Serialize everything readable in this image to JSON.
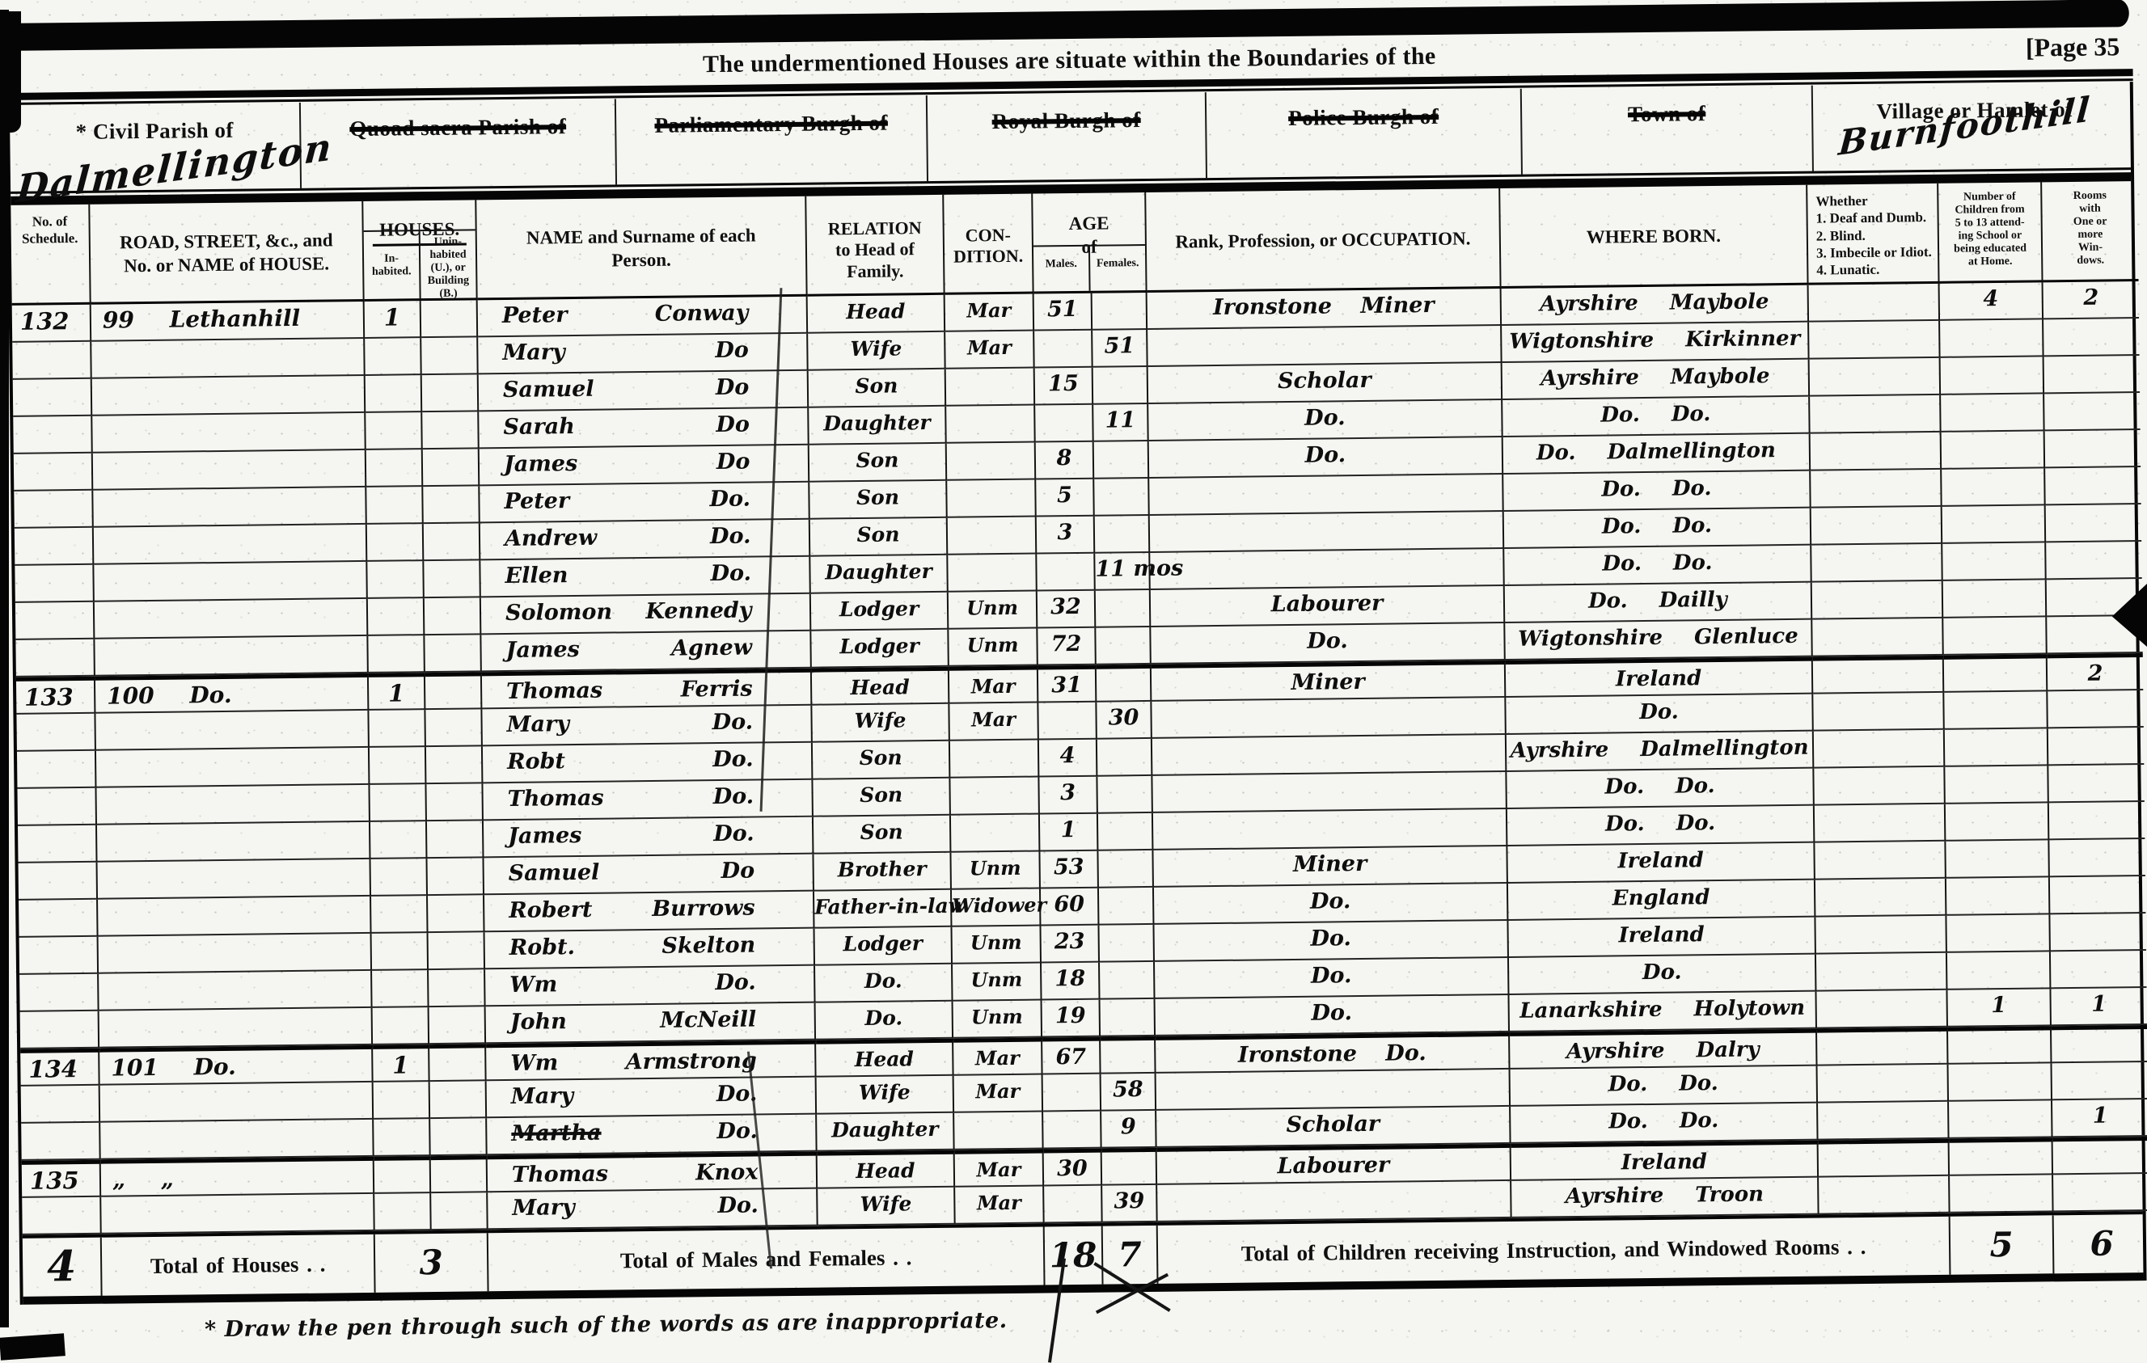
{
  "page": {
    "title": "The undermentioned Houses are situate within the Boundaries of the",
    "page_label": "[Page 35",
    "footnote": "*  Draw the pen through such of the words as are inappropriate."
  },
  "district_boxes": [
    {
      "label": "* Civil Parish of",
      "struck": false,
      "value": "Dalmellington",
      "value_class": "parish"
    },
    {
      "label": "Quoad sacra Parish of",
      "struck": true,
      "value": ""
    },
    {
      "label": "Parliamentary Burgh of",
      "struck": true,
      "value": ""
    },
    {
      "label": "Royal Burgh of",
      "struck": true,
      "value": ""
    },
    {
      "label": "Police Burgh of",
      "struck": true,
      "value": ""
    },
    {
      "label": "Town of",
      "struck": true,
      "value": ""
    },
    {
      "label": "Village or Hamlet of",
      "struck": false,
      "value": "Burnfoothill",
      "value_class": "village"
    }
  ],
  "columns": {
    "schedule": "No. of\nSchedule.",
    "road": "ROAD, STREET, &c., and\nNo. or NAME of HOUSE.",
    "houses": "HOUSES.",
    "inhabited": "In-\nhabited.",
    "uninhabited": "Unin-\nhabited\n(U.), or\nBuilding\n(B.)",
    "name": "NAME and Surname of each\nPerson.",
    "relation": "RELATION\nto Head of\nFamily.",
    "condition": "CON-\nDITION.",
    "age": "AGE\nof",
    "males": "Males.",
    "females": "Females.",
    "occupation": "Rank, Profession, or OCCUPATION.",
    "where_born": "WHERE BORN.",
    "whether": "Whether\n1.  Deaf and Dumb.\n2.  Blind.\n3.  Imbecile or Idiot.\n4.  Lunatic.",
    "children": "Number of\nChildren from\n5 to 13 attend-\ning School or\nbeing educated\nat Home.",
    "rooms": "Rooms\nwith\nOne or\nmore\nWin-\ndows."
  },
  "rows": [
    {
      "schedule": "132",
      "road": "99 Lethanhill",
      "inhabited": "1",
      "uninhabited": "",
      "first_name": "Peter",
      "surname": "Conway",
      "relation": "Head",
      "condition": "Mar",
      "age_male": "51",
      "age_female": "",
      "occupation": "Ironstone Miner",
      "where_born": "Ayrshire Maybole",
      "disability": "",
      "children_at_school": "4",
      "windowed_rooms": "2",
      "heavy_divider": false,
      "first_name_struck": false
    },
    {
      "schedule": "",
      "road": "",
      "inhabited": "",
      "uninhabited": "",
      "first_name": "Mary",
      "surname": "Do",
      "relation": "Wife",
      "condition": "Mar",
      "age_male": "",
      "age_female": "51",
      "occupation": "",
      "where_born": "Wigtonshire Kirkinner",
      "disability": "",
      "children_at_school": "",
      "windowed_rooms": "",
      "heavy_divider": false,
      "first_name_struck": false
    },
    {
      "schedule": "",
      "road": "",
      "inhabited": "",
      "uninhabited": "",
      "first_name": "Samuel",
      "surname": "Do",
      "relation": "Son",
      "condition": "",
      "age_male": "15",
      "age_female": "",
      "occupation": "Scholar",
      "where_born": "Ayrshire Maybole",
      "disability": "",
      "children_at_school": "",
      "windowed_rooms": "",
      "heavy_divider": false,
      "first_name_struck": false
    },
    {
      "schedule": "",
      "road": "",
      "inhabited": "",
      "uninhabited": "",
      "first_name": "Sarah",
      "surname": "Do",
      "relation": "Daughter",
      "condition": "",
      "age_male": "",
      "age_female": "11",
      "occupation": "Do.",
      "where_born": "Do. Do.",
      "disability": "",
      "children_at_school": "",
      "windowed_rooms": "",
      "heavy_divider": false,
      "first_name_struck": false
    },
    {
      "schedule": "",
      "road": "",
      "inhabited": "",
      "uninhabited": "",
      "first_name": "James",
      "surname": "Do",
      "relation": "Son",
      "condition": "",
      "age_male": "8",
      "age_female": "",
      "occupation": "Do.",
      "where_born": "Do. Dalmellington",
      "disability": "",
      "children_at_school": "",
      "windowed_rooms": "",
      "heavy_divider": false,
      "first_name_struck": false
    },
    {
      "schedule": "",
      "road": "",
      "inhabited": "",
      "uninhabited": "",
      "first_name": "Peter",
      "surname": "Do.",
      "relation": "Son",
      "condition": "",
      "age_male": "5",
      "age_female": "",
      "occupation": "",
      "where_born": "Do. Do.",
      "disability": "",
      "children_at_school": "",
      "windowed_rooms": "",
      "heavy_divider": false,
      "first_name_struck": false
    },
    {
      "schedule": "",
      "road": "",
      "inhabited": "",
      "uninhabited": "",
      "first_name": "Andrew",
      "surname": "Do.",
      "relation": "Son",
      "condition": "",
      "age_male": "3",
      "age_female": "",
      "occupation": "",
      "where_born": "Do. Do.",
      "disability": "",
      "children_at_school": "",
      "windowed_rooms": "",
      "heavy_divider": false,
      "first_name_struck": false
    },
    {
      "schedule": "",
      "road": "",
      "inhabited": "",
      "uninhabited": "",
      "first_name": "Ellen",
      "surname": "Do.",
      "relation": "Daughter",
      "condition": "",
      "age_male": "",
      "age_female": "11 mos",
      "occupation": "",
      "where_born": "Do. Do.",
      "disability": "",
      "children_at_school": "",
      "windowed_rooms": "",
      "heavy_divider": false,
      "first_name_struck": false
    },
    {
      "schedule": "",
      "road": "",
      "inhabited": "",
      "uninhabited": "",
      "first_name": "Solomon",
      "surname": "Kennedy",
      "relation": "Lodger",
      "condition": "Unm",
      "age_male": "32",
      "age_female": "",
      "occupation": "Labourer",
      "where_born": "Do. Dailly",
      "disability": "",
      "children_at_school": "",
      "windowed_rooms": "",
      "heavy_divider": false,
      "first_name_struck": false
    },
    {
      "schedule": "",
      "road": "",
      "inhabited": "",
      "uninhabited": "",
      "first_name": "James",
      "surname": "Agnew",
      "relation": "Lodger",
      "condition": "Unm",
      "age_male": "72",
      "age_female": "",
      "occupation": "Do.",
      "where_born": "Wigtonshire Glenluce",
      "disability": "",
      "children_at_school": "",
      "windowed_rooms": "",
      "heavy_divider": false,
      "first_name_struck": false
    },
    {
      "schedule": "133",
      "road": "100 Do.",
      "inhabited": "1",
      "uninhabited": "",
      "first_name": "Thomas",
      "surname": "Ferris",
      "relation": "Head",
      "condition": "Mar",
      "age_male": "31",
      "age_female": "",
      "occupation": "Miner",
      "where_born": "Ireland",
      "disability": "",
      "children_at_school": "",
      "windowed_rooms": "2",
      "heavy_divider": true,
      "first_name_struck": false
    },
    {
      "schedule": "",
      "road": "",
      "inhabited": "",
      "uninhabited": "",
      "first_name": "Mary",
      "surname": "Do.",
      "relation": "Wife",
      "condition": "Mar",
      "age_male": "",
      "age_female": "30",
      "occupation": "",
      "where_born": "Do.",
      "disability": "",
      "children_at_school": "",
      "windowed_rooms": "",
      "heavy_divider": false,
      "first_name_struck": false
    },
    {
      "schedule": "",
      "road": "",
      "inhabited": "",
      "uninhabited": "",
      "first_name": "Robt",
      "surname": "Do.",
      "relation": "Son",
      "condition": "",
      "age_male": "4",
      "age_female": "",
      "occupation": "",
      "where_born": "Ayrshire Dalmellington",
      "disability": "",
      "children_at_school": "",
      "windowed_rooms": "",
      "heavy_divider": false,
      "first_name_struck": false
    },
    {
      "schedule": "",
      "road": "",
      "inhabited": "",
      "uninhabited": "",
      "first_name": "Thomas",
      "surname": "Do.",
      "relation": "Son",
      "condition": "",
      "age_male": "3",
      "age_female": "",
      "occupation": "",
      "where_born": "Do. Do.",
      "disability": "",
      "children_at_school": "",
      "windowed_rooms": "",
      "heavy_divider": false,
      "first_name_struck": false
    },
    {
      "schedule": "",
      "road": "",
      "inhabited": "",
      "uninhabited": "",
      "first_name": "James",
      "surname": "Do.",
      "relation": "Son",
      "condition": "",
      "age_male": "1",
      "age_female": "",
      "occupation": "",
      "where_born": "Do. Do.",
      "disability": "",
      "children_at_school": "",
      "windowed_rooms": "",
      "heavy_divider": false,
      "first_name_struck": false
    },
    {
      "schedule": "",
      "road": "",
      "inhabited": "",
      "uninhabited": "",
      "first_name": "Samuel",
      "surname": "Do",
      "relation": "Brother",
      "condition": "Unm",
      "age_male": "53",
      "age_female": "",
      "occupation": "Miner",
      "where_born": "Ireland",
      "disability": "",
      "children_at_school": "",
      "windowed_rooms": "",
      "heavy_divider": false,
      "first_name_struck": false
    },
    {
      "schedule": "",
      "road": "",
      "inhabited": "",
      "uninhabited": "",
      "first_name": "Robert",
      "surname": "Burrows",
      "relation": "Father-in-law",
      "condition": "Widower",
      "age_male": "60",
      "age_female": "",
      "occupation": "Do.",
      "where_born": "England",
      "disability": "",
      "children_at_school": "",
      "windowed_rooms": "",
      "heavy_divider": false,
      "first_name_struck": false
    },
    {
      "schedule": "",
      "road": "",
      "inhabited": "",
      "uninhabited": "",
      "first_name": "Robt.",
      "surname": "Skelton",
      "relation": "Lodger",
      "condition": "Unm",
      "age_male": "23",
      "age_female": "",
      "occupation": "Do.",
      "where_born": "Ireland",
      "disability": "",
      "children_at_school": "",
      "windowed_rooms": "",
      "heavy_divider": false,
      "first_name_struck": false
    },
    {
      "schedule": "",
      "road": "",
      "inhabited": "",
      "uninhabited": "",
      "first_name": "Wm",
      "surname": "Do.",
      "relation": "Do.",
      "condition": "Unm",
      "age_male": "18",
      "age_female": "",
      "occupation": "Do.",
      "where_born": "Do.",
      "disability": "",
      "children_at_school": "",
      "windowed_rooms": "",
      "heavy_divider": false,
      "first_name_struck": false
    },
    {
      "schedule": "",
      "road": "",
      "inhabited": "",
      "uninhabited": "",
      "first_name": "John",
      "surname": "McNeill",
      "relation": "Do.",
      "condition": "Unm",
      "age_male": "19",
      "age_female": "",
      "occupation": "Do.",
      "where_born": "Lanarkshire Holytown",
      "disability": "",
      "children_at_school": "1",
      "windowed_rooms": "1",
      "heavy_divider": false,
      "first_name_struck": false
    },
    {
      "schedule": "134",
      "road": "101 Do.",
      "inhabited": "1",
      "uninhabited": "",
      "first_name": "Wm",
      "surname": "Armstrong",
      "relation": "Head",
      "condition": "Mar",
      "age_male": "67",
      "age_female": "",
      "occupation": "Ironstone Do.",
      "where_born": "Ayrshire Dalry",
      "disability": "",
      "children_at_school": "",
      "windowed_rooms": "",
      "heavy_divider": true,
      "first_name_struck": false
    },
    {
      "schedule": "",
      "road": "",
      "inhabited": "",
      "uninhabited": "",
      "first_name": "Mary",
      "surname": "Do.",
      "relation": "Wife",
      "condition": "Mar",
      "age_male": "",
      "age_female": "58",
      "occupation": "",
      "where_born": "Do. Do.",
      "disability": "",
      "children_at_school": "",
      "windowed_rooms": "",
      "heavy_divider": false,
      "first_name_struck": false
    },
    {
      "schedule": "",
      "road": "",
      "inhabited": "",
      "uninhabited": "",
      "first_name": "Martha",
      "surname": "Do.",
      "relation": "Daughter",
      "condition": "",
      "age_male": "",
      "age_female": "9",
      "occupation": "Scholar",
      "where_born": "Do. Do.",
      "disability": "",
      "children_at_school": "",
      "windowed_rooms": "1",
      "heavy_divider": false,
      "first_name_struck": true
    },
    {
      "schedule": "135",
      "road": "„ „",
      "inhabited": "",
      "uninhabited": "",
      "first_name": "Thomas",
      "surname": "Knox",
      "relation": "Head",
      "condition": "Mar",
      "age_male": "30",
      "age_female": "",
      "occupation": "Labourer",
      "where_born": "Ireland",
      "disability": "",
      "children_at_school": "",
      "windowed_rooms": "",
      "heavy_divider": true,
      "first_name_struck": false
    },
    {
      "schedule": "",
      "road": "",
      "inhabited": "",
      "uninhabited": "",
      "first_name": "Mary",
      "surname": "Do.",
      "relation": "Wife",
      "condition": "Mar",
      "age_male": "",
      "age_female": "39",
      "occupation": "",
      "where_born": "Ayrshire Troon",
      "disability": "",
      "children_at_school": "",
      "windowed_rooms": "",
      "heavy_divider": false,
      "first_name_struck": false
    }
  ],
  "totals": {
    "schedule_total": "4",
    "houses_label": "Total of Houses . .",
    "houses_value": "3",
    "males_females_label": "Total of Males and Females . .",
    "males_total": "18",
    "females_total": "7",
    "children_rooms_label": "Total of Children receiving Instruction, and Windowed Rooms . .",
    "children_total": "5",
    "rooms_total": "6"
  }
}
